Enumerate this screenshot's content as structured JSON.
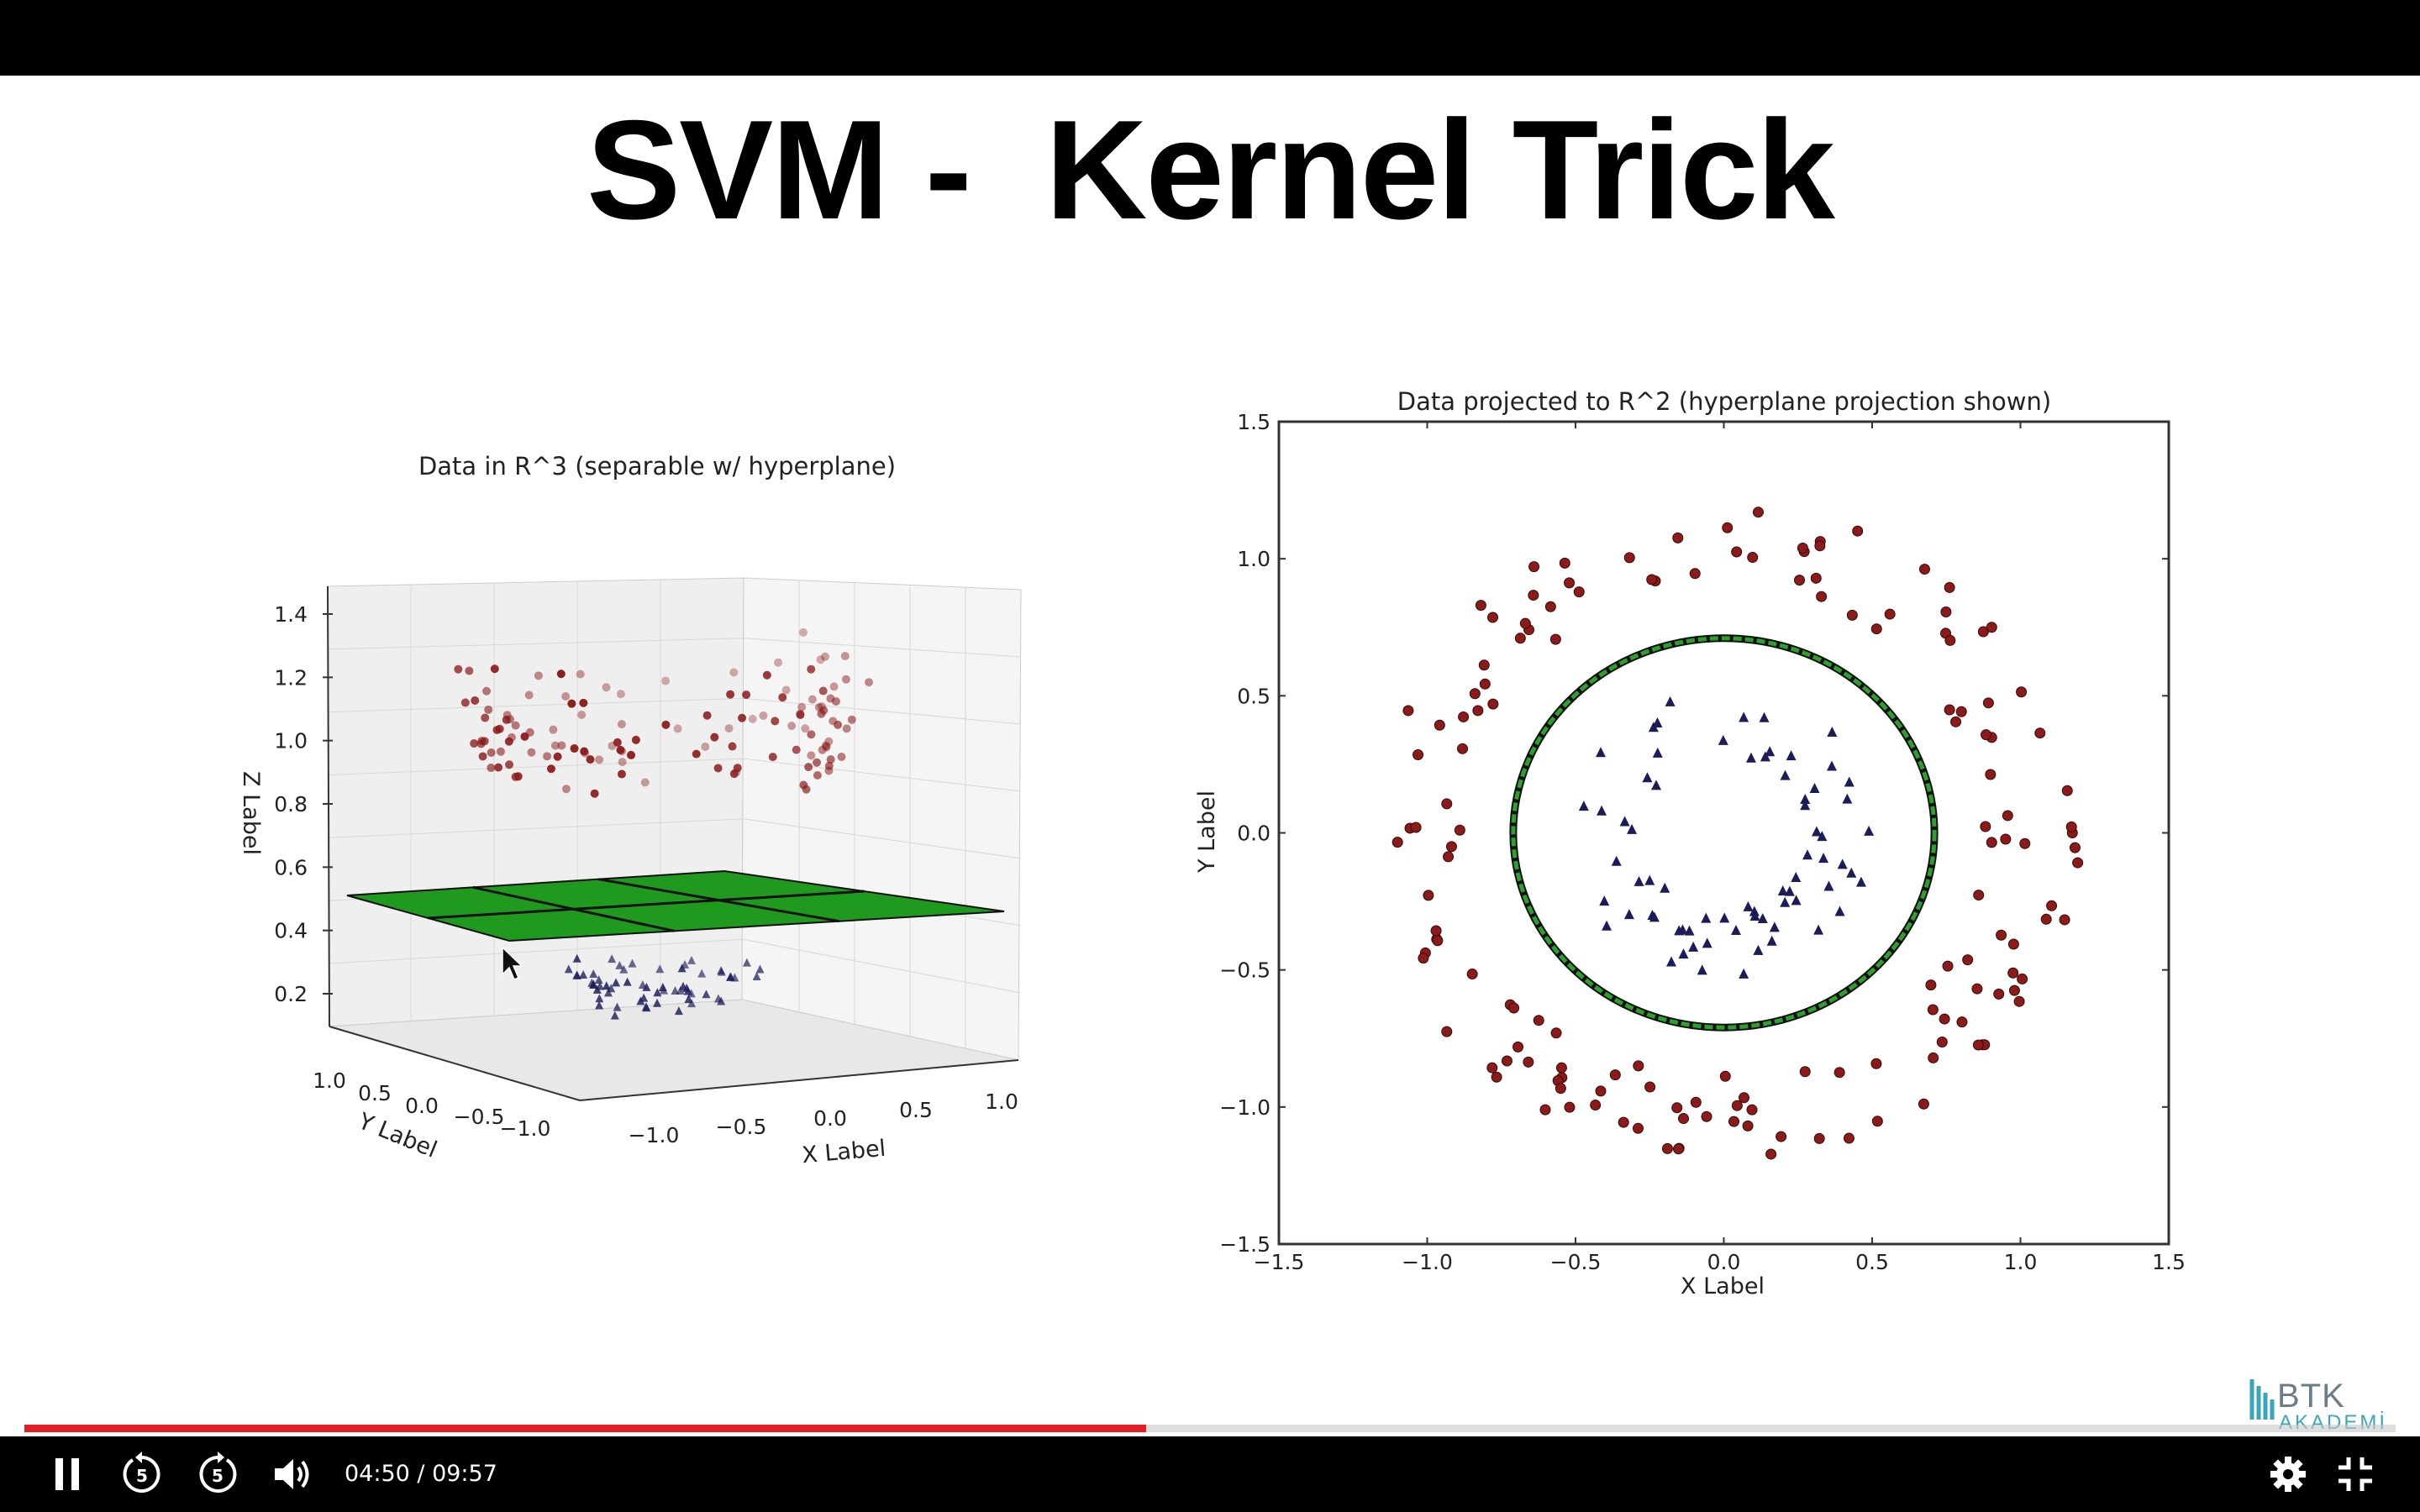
{
  "slide": {
    "title": "SVM -  Kernel Trick"
  },
  "chart_data": [
    {
      "type": "scatter",
      "title": "Data in R^3 (separable w/ hyperplane)",
      "projection": "3d",
      "xlabel": "X Label",
      "ylabel": "Y Label",
      "zlabel": "Z Label",
      "x_ticks": [
        "−1.0",
        "−0.5",
        "0.0",
        "0.5",
        "1.0"
      ],
      "y_ticks": [
        "1.0",
        "0.5",
        "0.0",
        "−0.5",
        "−1.0"
      ],
      "z_ticks": [
        "1.4",
        "1.2",
        "1.0",
        "0.8",
        "0.6",
        "0.4",
        "0.2"
      ],
      "xlim": [
        -1.2,
        1.2
      ],
      "ylim": [
        -1.2,
        1.2
      ],
      "zlim": [
        0.1,
        1.45
      ],
      "hyperplane_z": 0.4,
      "series": [],
      "colors": {
        "upper": "#8b1a1a",
        "lower": "#1c1c5a",
        "plane": "#1f9a1f"
      }
    },
    {
      "type": "scatter",
      "title": "Data projected to R^2 (hyperplane projection shown)",
      "xlabel": "X Label",
      "ylabel": "Y Label",
      "x_ticks": [
        "−1.5",
        "−1.0",
        "−0.5",
        "0.0",
        "0.5",
        "1.0",
        "1.5"
      ],
      "y_ticks": [
        "1.5",
        "1.0",
        "0.5",
        "0.0",
        "−0.5",
        "−1.0",
        "−1.5"
      ],
      "xlim": [
        -1.5,
        1.5
      ],
      "ylim": [
        -1.5,
        1.5
      ],
      "boundary_circle_radius": 0.71,
      "series": [],
      "colors": {
        "outer": "#8b1a1a",
        "inner": "#1c1c5a",
        "circle": "#2e9e2e"
      }
    }
  ],
  "player": {
    "time_display": "04:50 / 09:57",
    "progress": 0.473,
    "skip_back_label": "5",
    "skip_forward_label": "5",
    "logo_text": "BTK",
    "logo_sub": "AKADEMİ",
    "icons": [
      "pause-icon",
      "rewind-5-icon",
      "forward-5-icon",
      "volume-icon",
      "settings-gear-icon",
      "exit-fullscreen-icon"
    ],
    "accent_color": "#e41c23"
  }
}
